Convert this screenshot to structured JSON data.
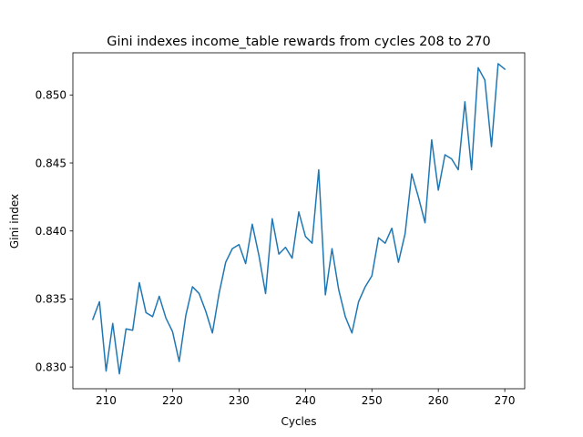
{
  "chart_data": {
    "type": "line",
    "title": "Gini indexes income_table rewards from cycles 208 to 270",
    "xlabel": "Cycles",
    "ylabel": "Gini index",
    "xlim": [
      205,
      273
    ],
    "ylim": [
      0.8284,
      0.8531
    ],
    "xticks": [
      210,
      220,
      230,
      240,
      250,
      260,
      270
    ],
    "yticks": [
      0.83,
      0.835,
      0.84,
      0.845,
      0.85
    ],
    "ytick_labels": [
      "0.830",
      "0.835",
      "0.840",
      "0.845",
      "0.850"
    ],
    "grid": false,
    "color": "#1f77b4",
    "series": [
      {
        "x": [
          208,
          209,
          210,
          211,
          212,
          213,
          214,
          215,
          216,
          217,
          218,
          219,
          220,
          221,
          222,
          223,
          224,
          225,
          226,
          227,
          228,
          229,
          230,
          231,
          232,
          233,
          234,
          235,
          236,
          237,
          238,
          239,
          240,
          241,
          242,
          243,
          244,
          245,
          246,
          247,
          248,
          249,
          250,
          251,
          252,
          253,
          254,
          255,
          256,
          257,
          258,
          259,
          260,
          261,
          262,
          263,
          264,
          265,
          266,
          267,
          268,
          269,
          270
        ],
        "values": [
          0.8335,
          0.8348,
          0.8297,
          0.8332,
          0.8295,
          0.8328,
          0.8327,
          0.8362,
          0.834,
          0.8337,
          0.8352,
          0.8336,
          0.8326,
          0.8304,
          0.8338,
          0.8359,
          0.8354,
          0.8341,
          0.8325,
          0.8354,
          0.8377,
          0.8387,
          0.839,
          0.8376,
          0.8405,
          0.8382,
          0.8354,
          0.8409,
          0.8383,
          0.8388,
          0.838,
          0.8414,
          0.8396,
          0.8391,
          0.8445,
          0.8353,
          0.8387,
          0.8357,
          0.8337,
          0.8325,
          0.8348,
          0.8359,
          0.8367,
          0.8395,
          0.8391,
          0.8402,
          0.8377,
          0.8398,
          0.8442,
          0.8425,
          0.8406,
          0.8467,
          0.843,
          0.8456,
          0.8453,
          0.8445,
          0.8495,
          0.8445,
          0.852,
          0.8511,
          0.8462,
          0.8523,
          0.8519
        ]
      }
    ]
  }
}
